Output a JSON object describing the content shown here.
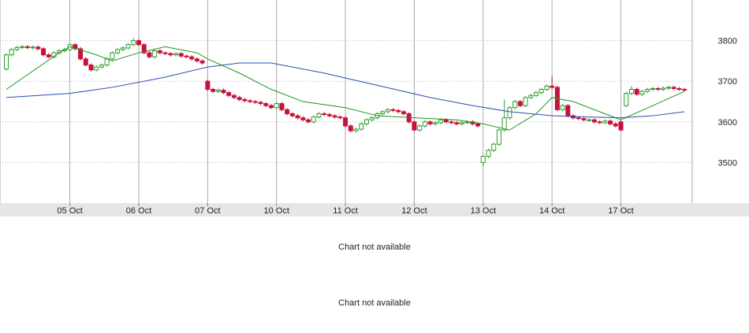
{
  "chart_data": {
    "type": "candlestick",
    "xlim": [
      -1,
      129
    ],
    "xticks": [
      {
        "value": 12,
        "label": "05 Oct"
      },
      {
        "value": 25,
        "label": "06 Oct"
      },
      {
        "value": 38,
        "label": "07 Oct"
      },
      {
        "value": 51,
        "label": "10 Oct"
      },
      {
        "value": 64,
        "label": "11 Oct"
      },
      {
        "value": 77,
        "label": "12 Oct"
      },
      {
        "value": 90,
        "label": "13 Oct"
      },
      {
        "value": 103,
        "label": "14 Oct"
      },
      {
        "value": 116,
        "label": "17 Oct"
      }
    ],
    "ylim": [
      3400,
      3900
    ],
    "yticks": [
      3500,
      3600,
      3700,
      3800
    ],
    "grid": true,
    "up_color": "#2e9e2e",
    "down_color": "#c8103c",
    "open": [
      3730,
      3765,
      3778,
      3783,
      3785,
      3783,
      3784,
      3780,
      3765,
      3760,
      3770,
      3775,
      3778,
      3790,
      3780,
      3755,
      3740,
      3728,
      3735,
      3740,
      3755,
      3770,
      3778,
      3782,
      3790,
      3800,
      3790,
      3770,
      3760,
      3775,
      3770,
      3768,
      3765,
      3768,
      3762,
      3760,
      3755,
      3750,
      3700,
      3680,
      3675,
      3678,
      3672,
      3665,
      3660,
      3655,
      3652,
      3650,
      3648,
      3645,
      3640,
      3635,
      3645,
      3630,
      3620,
      3615,
      3610,
      3605,
      3600,
      3612,
      3620,
      3618,
      3615,
      3612,
      3610,
      3590,
      3578,
      3582,
      3595,
      3605,
      3610,
      3620,
      3625,
      3630,
      3628,
      3625,
      3620,
      3600,
      3580,
      3590,
      3600,
      3595,
      3598,
      3605,
      3600,
      3598,
      3595,
      3598,
      3600,
      3595,
      3500,
      3515,
      3530,
      3545,
      3580,
      3610,
      3635,
      3650,
      3640,
      3660,
      3665,
      3672,
      3680,
      3688,
      3685,
      3630,
      3640,
      3615,
      3610,
      3608,
      3605,
      3605,
      3600,
      3598,
      3602,
      3595,
      3600,
      3640,
      3670,
      3680,
      3668,
      3675,
      3680,
      3682,
      3680,
      3683,
      3685,
      3682,
      3680
    ],
    "high": [
      3769,
      3782,
      3787,
      3789,
      3789,
      3788,
      3788,
      3784,
      3769,
      3774,
      3779,
      3782,
      3794,
      3794,
      3784,
      3759,
      3744,
      3739,
      3744,
      3759,
      3774,
      3782,
      3786,
      3794,
      3806,
      3804,
      3794,
      3774,
      3779,
      3779,
      3774,
      3772,
      3772,
      3772,
      3766,
      3764,
      3759,
      3754,
      3704,
      3684,
      3682,
      3682,
      3676,
      3669,
      3664,
      3659,
      3656,
      3654,
      3652,
      3649,
      3644,
      3649,
      3649,
      3634,
      3624,
      3619,
      3614,
      3609,
      3616,
      3624,
      3624,
      3622,
      3619,
      3616,
      3614,
      3594,
      3586,
      3599,
      3609,
      3614,
      3624,
      3629,
      3634,
      3634,
      3632,
      3629,
      3624,
      3604,
      3594,
      3604,
      3604,
      3602,
      3609,
      3609,
      3604,
      3602,
      3602,
      3604,
      3604,
      3599,
      3519,
      3534,
      3549,
      3584,
      3655,
      3639,
      3654,
      3654,
      3664,
      3669,
      3676,
      3684,
      3692,
      3712,
      3689,
      3644,
      3644,
      3619,
      3614,
      3612,
      3609,
      3609,
      3604,
      3606,
      3606,
      3599,
      3604,
      3674,
      3688,
      3684,
      3679,
      3684,
      3686,
      3686,
      3687,
      3689,
      3689,
      3686,
      3684
    ],
    "low": [
      3726,
      3761,
      3774,
      3779,
      3779,
      3779,
      3776,
      3761,
      3756,
      3756,
      3766,
      3771,
      3774,
      3776,
      3751,
      3736,
      3724,
      3724,
      3731,
      3736,
      3751,
      3766,
      3774,
      3778,
      3786,
      3786,
      3766,
      3756,
      3756,
      3766,
      3764,
      3761,
      3761,
      3758,
      3756,
      3751,
      3746,
      3741,
      3676,
      3671,
      3671,
      3668,
      3661,
      3656,
      3651,
      3648,
      3646,
      3644,
      3641,
      3636,
      3631,
      3631,
      3626,
      3616,
      3611,
      3606,
      3601,
      3596,
      3596,
      3608,
      3614,
      3611,
      3608,
      3606,
      3586,
      3574,
      3574,
      3578,
      3591,
      3601,
      3606,
      3616,
      3621,
      3624,
      3621,
      3616,
      3596,
      3576,
      3576,
      3586,
      3591,
      3591,
      3594,
      3596,
      3594,
      3591,
      3591,
      3594,
      3591,
      3586,
      3490,
      3511,
      3526,
      3541,
      3576,
      3606,
      3631,
      3636,
      3636,
      3656,
      3661,
      3668,
      3676,
      3681,
      3626,
      3626,
      3611,
      3606,
      3604,
      3601,
      3601,
      3596,
      3594,
      3594,
      3591,
      3586,
      3576,
      3636,
      3666,
      3664,
      3664,
      3671,
      3676,
      3676,
      3676,
      3679,
      3678,
      3676,
      3675
    ],
    "close": [
      3765,
      3778,
      3783,
      3785,
      3783,
      3784,
      3780,
      3765,
      3760,
      3770,
      3775,
      3778,
      3790,
      3780,
      3755,
      3740,
      3728,
      3735,
      3740,
      3755,
      3770,
      3778,
      3782,
      3790,
      3800,
      3790,
      3770,
      3760,
      3775,
      3770,
      3768,
      3765,
      3768,
      3762,
      3760,
      3755,
      3750,
      3745,
      3680,
      3675,
      3678,
      3672,
      3665,
      3660,
      3655,
      3652,
      3650,
      3648,
      3645,
      3640,
      3635,
      3645,
      3630,
      3620,
      3615,
      3610,
      3605,
      3600,
      3612,
      3620,
      3618,
      3615,
      3612,
      3610,
      3590,
      3578,
      3582,
      3595,
      3605,
      3610,
      3620,
      3625,
      3630,
      3628,
      3625,
      3620,
      3600,
      3580,
      3590,
      3600,
      3595,
      3598,
      3605,
      3600,
      3598,
      3595,
      3598,
      3600,
      3595,
      3590,
      3515,
      3530,
      3545,
      3580,
      3610,
      3635,
      3650,
      3640,
      3660,
      3665,
      3672,
      3680,
      3688,
      3685,
      3630,
      3640,
      3615,
      3610,
      3608,
      3605,
      3605,
      3600,
      3598,
      3602,
      3595,
      3590,
      3580,
      3670,
      3680,
      3668,
      3675,
      3680,
      3682,
      3680,
      3683,
      3685,
      3682,
      3680,
      3679
    ],
    "lines": [
      {
        "color": "#1a9a1a",
        "x": [
          0,
          10,
          12,
          17,
          20,
          25,
          30,
          36,
          38,
          44,
          50,
          56,
          64,
          70,
          77,
          85,
          90,
          95,
          100,
          103,
          107,
          113,
          116,
          122,
          128
        ],
        "values": [
          3680,
          3770,
          3785,
          3765,
          3750,
          3770,
          3785,
          3770,
          3755,
          3720,
          3680,
          3650,
          3635,
          3615,
          3610,
          3605,
          3595,
          3580,
          3620,
          3660,
          3650,
          3620,
          3605,
          3640,
          3675
        ]
      },
      {
        "color": "#2a4bb0",
        "x": [
          0,
          12,
          20,
          30,
          38,
          44,
          50,
          60,
          70,
          80,
          88,
          95,
          103,
          110,
          116,
          122,
          128
        ],
        "values": [
          3660,
          3670,
          3685,
          3710,
          3735,
          3745,
          3745,
          3720,
          3690,
          3660,
          3640,
          3625,
          3615,
          3612,
          3610,
          3615,
          3625
        ]
      }
    ]
  },
  "messages": [
    "Chart not available",
    "Chart not available"
  ]
}
